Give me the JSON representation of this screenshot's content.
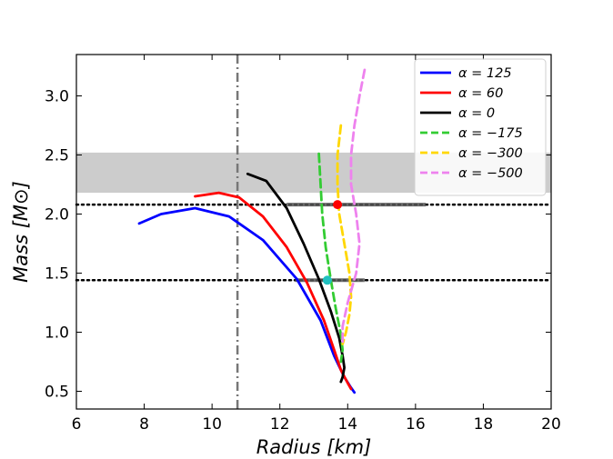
{
  "chart_data": {
    "type": "line",
    "title": "",
    "xlabel": "Radius [km]",
    "ylabel": "Mass [M⊙]",
    "xlim": [
      6,
      20
    ],
    "ylim": [
      0.35,
      3.35
    ],
    "xticks": [
      6,
      8,
      10,
      12,
      14,
      16,
      18,
      20
    ],
    "yticks": [
      0.5,
      1.0,
      1.5,
      2.0,
      2.5,
      3.0
    ],
    "xtick_labels": [
      "6",
      "8",
      "10",
      "12",
      "14",
      "16",
      "18",
      "20"
    ],
    "ytick_labels": [
      "0.5",
      "1.0",
      "1.5",
      "2.0",
      "2.5",
      "3.0"
    ],
    "grid": false,
    "legend_position": "top-right",
    "series": [
      {
        "name": "α = 125",
        "color": "#0000ff",
        "style": "solid",
        "x": [
          7.85,
          8.5,
          9.5,
          10.5,
          11.5,
          12.5,
          13.2,
          13.6,
          13.9,
          14.1,
          14.2
        ],
        "y": [
          1.92,
          2.0,
          2.05,
          1.98,
          1.78,
          1.45,
          1.1,
          0.8,
          0.62,
          0.53,
          0.49
        ]
      },
      {
        "name": "α = 60",
        "color": "#ff0000",
        "style": "solid",
        "x": [
          9.5,
          10.2,
          10.8,
          11.5,
          12.2,
          12.8,
          13.3,
          13.6,
          13.8,
          14.0,
          14.1
        ],
        "y": [
          2.15,
          2.18,
          2.14,
          1.98,
          1.72,
          1.42,
          1.1,
          0.85,
          0.68,
          0.57,
          0.52
        ]
      },
      {
        "name": "α = 0",
        "color": "#000000",
        "style": "solid",
        "x": [
          11.05,
          11.6,
          12.2,
          12.7,
          13.15,
          13.5,
          13.75,
          13.85,
          13.9,
          13.85,
          13.8
        ],
        "y": [
          2.34,
          2.28,
          2.05,
          1.75,
          1.45,
          1.18,
          0.95,
          0.8,
          0.7,
          0.62,
          0.58
        ]
      },
      {
        "name": "α = −175",
        "color": "#33cc33",
        "style": "dashed",
        "x": [
          13.15,
          13.2,
          13.25,
          13.35,
          13.5,
          13.65,
          13.8,
          13.85,
          13.8
        ],
        "y": [
          2.51,
          2.25,
          2.0,
          1.72,
          1.45,
          1.2,
          0.98,
          0.85,
          0.75
        ]
      },
      {
        "name": "α = −300",
        "color": "#ffd700",
        "style": "dashed",
        "x": [
          13.8,
          13.7,
          13.7,
          13.75,
          13.9,
          14.05,
          14.1,
          14.05,
          13.95,
          13.85
        ],
        "y": [
          2.75,
          2.5,
          2.25,
          2.0,
          1.75,
          1.5,
          1.3,
          1.15,
          1.0,
          0.9
        ]
      },
      {
        "name": "α = −500",
        "color": "#ee82ee",
        "style": "dashed",
        "x": [
          14.5,
          14.35,
          14.2,
          14.1,
          14.1,
          14.25,
          14.35,
          14.25,
          14.0,
          13.85,
          13.85
        ],
        "y": [
          3.22,
          3.0,
          2.75,
          2.5,
          2.25,
          2.0,
          1.75,
          1.5,
          1.25,
          1.05,
          0.92
        ]
      }
    ],
    "annotations": {
      "gray_band": {
        "y": [
          2.18,
          2.52
        ],
        "color": "#cccccc"
      },
      "hlines_dotted": [
        2.08,
        1.44
      ],
      "vline_dashdot": 10.75,
      "error_bars": [
        {
          "x": 13.7,
          "y": 2.08,
          "xmin": 12.2,
          "xmax": 16.3,
          "color": "#ff0000",
          "bar_color": "#555555"
        },
        {
          "x": 13.4,
          "y": 1.44,
          "xmin": 12.45,
          "xmax": 14.5,
          "color": "#20c0c0",
          "bar_color": "#555555"
        }
      ]
    }
  }
}
